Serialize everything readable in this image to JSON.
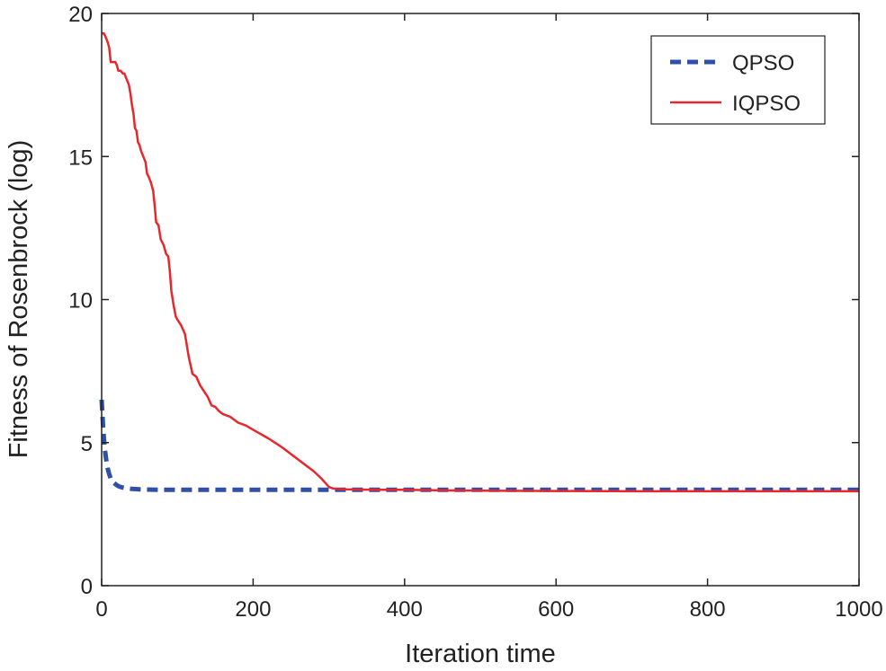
{
  "chart_data": {
    "type": "line",
    "title": "",
    "xlabel": "Iteration time",
    "ylabel": "Fitness of Rosenbrock (log)",
    "xlim": [
      0,
      1000
    ],
    "ylim": [
      0,
      20
    ],
    "xticks": [
      0,
      200,
      400,
      600,
      800,
      1000
    ],
    "xtick_labels": [
      "0",
      "200",
      "400",
      "600",
      "800",
      "1000"
    ],
    "yticks": [
      0,
      5,
      10,
      15,
      20
    ],
    "ytick_labels": [
      "0",
      "5",
      "10",
      "15",
      "20"
    ],
    "grid": false,
    "legend_position": "top-right",
    "series": [
      {
        "name": "QPSO",
        "color": "#3050a8",
        "style": "dashed",
        "x": [
          0,
          2,
          4,
          6,
          8,
          10,
          12,
          15,
          18,
          22,
          26,
          30,
          35,
          40,
          50,
          60,
          80,
          100,
          150,
          200,
          300,
          400,
          500,
          600,
          700,
          800,
          900,
          1000
        ],
        "y": [
          6.5,
          5.5,
          4.8,
          4.4,
          4.1,
          3.9,
          3.75,
          3.62,
          3.55,
          3.48,
          3.44,
          3.42,
          3.4,
          3.38,
          3.37,
          3.36,
          3.35,
          3.35,
          3.35,
          3.35,
          3.35,
          3.35,
          3.35,
          3.35,
          3.35,
          3.35,
          3.35,
          3.35
        ]
      },
      {
        "name": "IQPSO",
        "color": "#e8262b",
        "style": "solid",
        "x": [
          0,
          3,
          5,
          8,
          10,
          12,
          15,
          18,
          20,
          22,
          25,
          28,
          30,
          33,
          36,
          38,
          40,
          42,
          44,
          46,
          48,
          50,
          52,
          55,
          58,
          60,
          62,
          65,
          68,
          70,
          72,
          75,
          78,
          80,
          82,
          85,
          88,
          90,
          92,
          95,
          98,
          100,
          105,
          110,
          115,
          120,
          125,
          130,
          135,
          140,
          145,
          150,
          155,
          160,
          170,
          180,
          190,
          200,
          210,
          220,
          230,
          240,
          250,
          260,
          270,
          280,
          290,
          295,
          300,
          305,
          310,
          320,
          340,
          360,
          400,
          450,
          500,
          600,
          700,
          800,
          900,
          1000
        ],
        "y": [
          19.3,
          19.3,
          19.2,
          19.0,
          18.8,
          18.3,
          18.3,
          18.3,
          18.2,
          18.0,
          18.0,
          17.9,
          17.9,
          17.7,
          17.5,
          17.2,
          16.8,
          16.5,
          16.0,
          15.9,
          15.5,
          15.4,
          15.2,
          15.0,
          14.8,
          14.4,
          14.3,
          14.1,
          13.8,
          13.3,
          12.7,
          12.6,
          12.1,
          12.0,
          11.9,
          11.6,
          11.5,
          11.0,
          10.3,
          9.8,
          9.4,
          9.3,
          9.1,
          8.8,
          8.0,
          7.4,
          7.3,
          7.0,
          6.8,
          6.6,
          6.3,
          6.25,
          6.1,
          6.0,
          5.9,
          5.7,
          5.6,
          5.45,
          5.3,
          5.15,
          4.98,
          4.8,
          4.6,
          4.4,
          4.2,
          4.0,
          3.75,
          3.6,
          3.45,
          3.4,
          3.38,
          3.37,
          3.36,
          3.35,
          3.35,
          3.33,
          3.32,
          3.31,
          3.3,
          3.3,
          3.3,
          3.3
        ]
      }
    ]
  }
}
